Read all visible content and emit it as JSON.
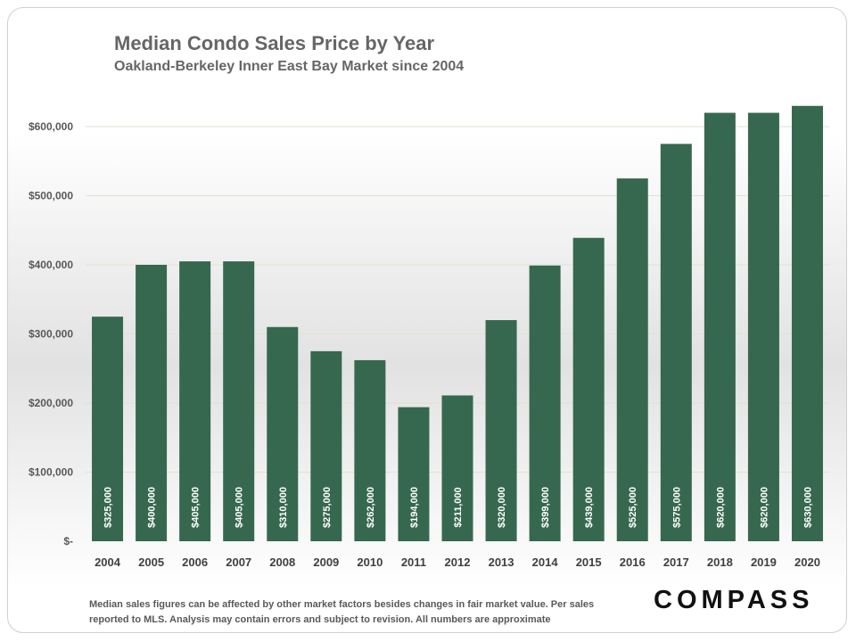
{
  "chart_data": {
    "type": "bar",
    "title": "Median Condo Sales Price by Year",
    "subtitle": "Oakland-Berkeley  Inner East Bay Market  since 2004",
    "xlabel": "",
    "ylabel": "",
    "categories": [
      "2004",
      "2005",
      "2006",
      "2007",
      "2008",
      "2009",
      "2010",
      "2011",
      "2012",
      "2013",
      "2014",
      "2015",
      "2016",
      "2017",
      "2018",
      "2019",
      "2020"
    ],
    "values": [
      325000,
      400000,
      405000,
      405000,
      310000,
      275000,
      262000,
      194000,
      211000,
      320000,
      399000,
      439000,
      525000,
      575000,
      620000,
      620000,
      630000
    ],
    "data_labels": [
      "$325,000",
      "$400,000",
      "$405,000",
      "$405,000",
      "$310,000",
      "$275,000",
      "$262,000",
      "$194,000",
      "$211,000",
      "$320,000",
      "$399,000",
      "$439,000",
      "$525,000",
      "$575,000",
      "$620,000",
      "$620,000",
      "$630,000"
    ],
    "y_ticks": [
      0,
      100000,
      200000,
      300000,
      400000,
      500000,
      600000
    ],
    "y_tick_labels": [
      "$-",
      "$100,000",
      "$200,000",
      "$300,000",
      "$400,000",
      "$500,000",
      "$600,000"
    ],
    "ylim": [
      0,
      650000
    ],
    "grid": true,
    "legend": "none",
    "bar_color": "#36684f",
    "label_color": "#ffffff"
  },
  "footnote": "Median sales figures can be affected by other market factors besides changes in fair market value. Per sales reported to MLS. Analysis may contain errors and subject to revision. All numbers are approximate",
  "logo_text": "COMPASS"
}
